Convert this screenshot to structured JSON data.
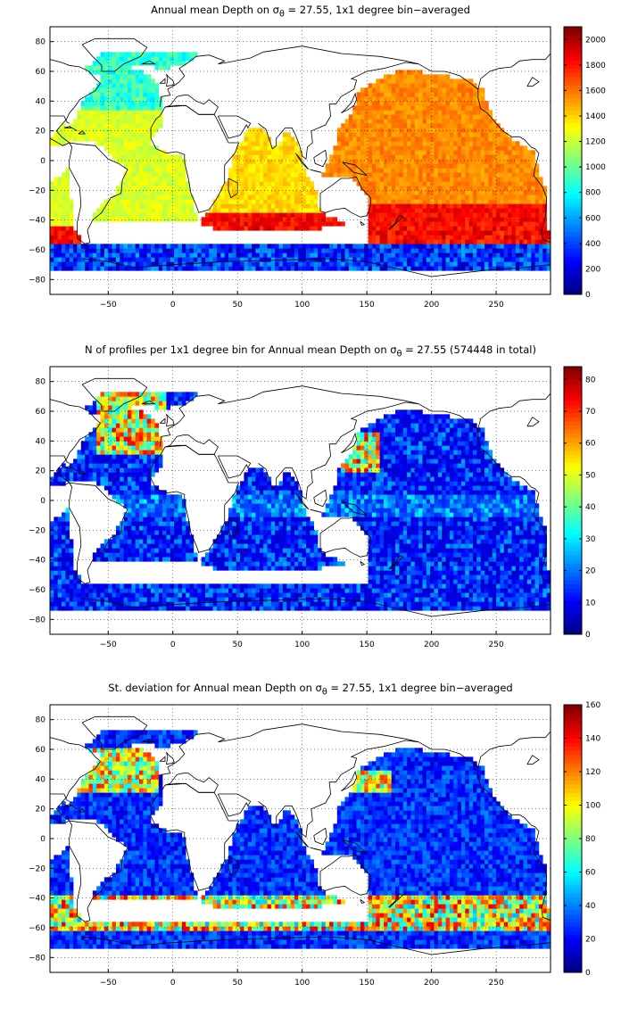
{
  "panels": [
    {
      "title_pre": "Annual mean Depth on ",
      "title_sym": "σ",
      "title_sub": "θ",
      "title_post": " = 27.55, 1x1 degree bin−averaged",
      "colorbar": {
        "min": 0,
        "max": 2100,
        "ticks": [
          "0",
          "200",
          "400",
          "600",
          "800",
          "1000",
          "1200",
          "1400",
          "1600",
          "1800",
          "2000"
        ],
        "tick_values": [
          0,
          200,
          400,
          600,
          800,
          1000,
          1200,
          1400,
          1600,
          1800,
          2000
        ]
      }
    },
    {
      "title_pre": "N of profiles per 1x1 degree bin for Annual mean Depth on ",
      "title_sym": "σ",
      "title_sub": "θ",
      "title_post": " = 27.55 (574448 in total)",
      "colorbar": {
        "min": 0,
        "max": 84,
        "ticks": [
          "0",
          "10",
          "20",
          "30",
          "40",
          "50",
          "60",
          "70",
          "80"
        ],
        "tick_values": [
          0,
          10,
          20,
          30,
          40,
          50,
          60,
          70,
          80
        ]
      }
    },
    {
      "title_pre": "St. deviation for Annual mean Depth on ",
      "title_sym": "σ",
      "title_sub": "θ",
      "title_post": " = 27.55, 1x1 degree bin−averaged",
      "colorbar": {
        "min": 0,
        "max": 160,
        "ticks": [
          "0",
          "20",
          "40",
          "60",
          "80",
          "100",
          "120",
          "140",
          "160"
        ],
        "tick_values": [
          0,
          20,
          40,
          60,
          80,
          100,
          120,
          140,
          160
        ]
      }
    }
  ],
  "axes": {
    "xlim": [
      -95,
      292
    ],
    "ylim": [
      -90,
      90
    ],
    "x_ticks": [
      "−50",
      "0",
      "50",
      "100",
      "150",
      "200",
      "250"
    ],
    "x_tick_values": [
      -50,
      0,
      50,
      100,
      150,
      200,
      250
    ],
    "y_ticks": [
      "80",
      "60",
      "40",
      "20",
      "0",
      "−20",
      "−40",
      "−60",
      "−80"
    ],
    "y_tick_values": [
      80,
      60,
      40,
      20,
      0,
      -20,
      -40,
      -60,
      -80
    ],
    "grid": "dotted"
  },
  "colormap": "jet"
}
